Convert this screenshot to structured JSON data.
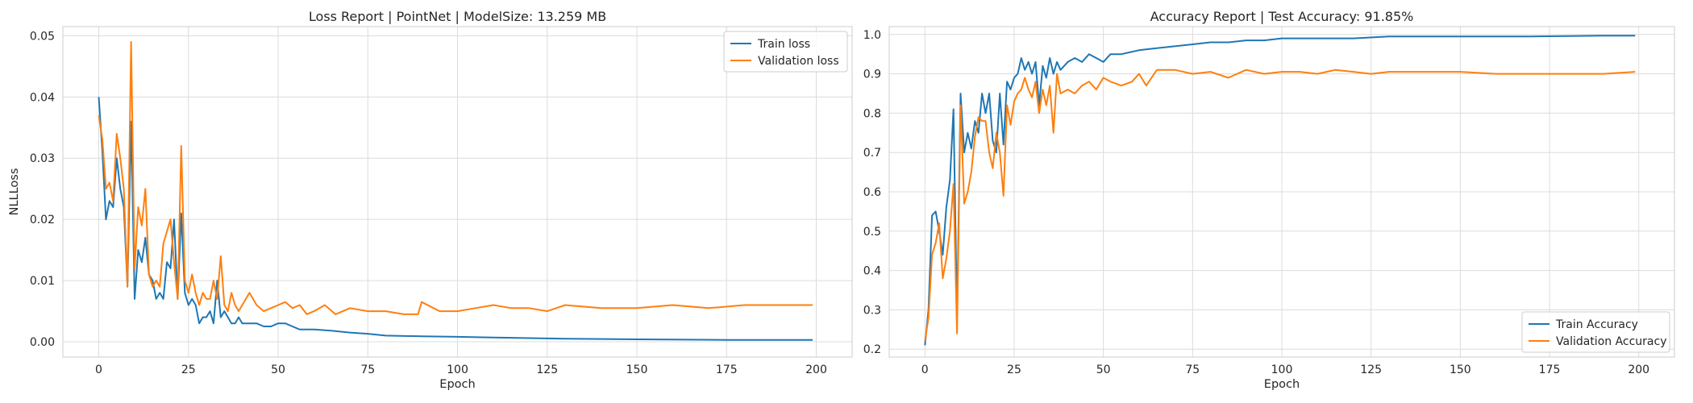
{
  "chart_data": [
    {
      "type": "line",
      "title": "Loss Report | PointNet | ModelSize: 13.259 MB",
      "xlabel": "Epoch",
      "ylabel": "NLLLoss",
      "xlim": [
        -10,
        210
      ],
      "ylim": [
        -0.0025,
        0.0515
      ],
      "xticks": [
        0,
        25,
        50,
        75,
        100,
        125,
        150,
        175,
        200
      ],
      "yticks": [
        0.0,
        0.01,
        0.02,
        0.03,
        0.04,
        0.05
      ],
      "ytick_labels": [
        "0.00",
        "0.01",
        "0.02",
        "0.03",
        "0.04",
        "0.05"
      ],
      "grid": true,
      "legend_position": "top-right",
      "series": [
        {
          "name": "Train loss",
          "color": "#1f77b4",
          "x": [
            0,
            1,
            2,
            3,
            4,
            5,
            6,
            7,
            8,
            9,
            10,
            11,
            12,
            13,
            14,
            15,
            16,
            17,
            18,
            19,
            20,
            21,
            22,
            23,
            24,
            25,
            26,
            27,
            28,
            29,
            30,
            31,
            32,
            33,
            34,
            35,
            36,
            37,
            38,
            39,
            40,
            42,
            44,
            46,
            48,
            50,
            52,
            54,
            56,
            58,
            60,
            65,
            70,
            75,
            80,
            90,
            100,
            110,
            120,
            130,
            150,
            175,
            199
          ],
          "y": [
            0.04,
            0.031,
            0.02,
            0.023,
            0.022,
            0.03,
            0.025,
            0.022,
            0.009,
            0.036,
            0.007,
            0.015,
            0.013,
            0.017,
            0.011,
            0.01,
            0.007,
            0.008,
            0.007,
            0.013,
            0.012,
            0.02,
            0.007,
            0.021,
            0.008,
            0.006,
            0.007,
            0.006,
            0.003,
            0.004,
            0.004,
            0.005,
            0.003,
            0.01,
            0.004,
            0.005,
            0.004,
            0.003,
            0.003,
            0.004,
            0.003,
            0.003,
            0.003,
            0.0025,
            0.0025,
            0.003,
            0.003,
            0.0025,
            0.002,
            0.002,
            0.002,
            0.0018,
            0.0015,
            0.0013,
            0.001,
            0.0009,
            0.0008,
            0.0007,
            0.0006,
            0.0005,
            0.0004,
            0.0003,
            0.0003
          ]
        },
        {
          "name": "Validation loss",
          "color": "#ff7f0e",
          "x": [
            0,
            1,
            2,
            3,
            4,
            5,
            6,
            7,
            8,
            9,
            10,
            11,
            12,
            13,
            14,
            15,
            16,
            17,
            18,
            19,
            20,
            21,
            22,
            23,
            24,
            25,
            26,
            27,
            28,
            29,
            30,
            31,
            32,
            33,
            34,
            35,
            36,
            37,
            38,
            39,
            40,
            42,
            44,
            46,
            48,
            50,
            52,
            54,
            56,
            58,
            60,
            63,
            66,
            70,
            75,
            80,
            85,
            89,
            90,
            95,
            100,
            105,
            110,
            115,
            120,
            125,
            130,
            140,
            150,
            160,
            170,
            180,
            190,
            199
          ],
          "y": [
            0.037,
            0.033,
            0.025,
            0.026,
            0.023,
            0.034,
            0.03,
            0.025,
            0.009,
            0.049,
            0.012,
            0.022,
            0.019,
            0.025,
            0.011,
            0.009,
            0.01,
            0.009,
            0.016,
            0.018,
            0.02,
            0.013,
            0.007,
            0.032,
            0.01,
            0.008,
            0.011,
            0.008,
            0.006,
            0.008,
            0.007,
            0.007,
            0.01,
            0.007,
            0.014,
            0.006,
            0.005,
            0.008,
            0.006,
            0.005,
            0.006,
            0.008,
            0.006,
            0.005,
            0.0055,
            0.006,
            0.0065,
            0.0055,
            0.006,
            0.0045,
            0.005,
            0.006,
            0.0045,
            0.0055,
            0.005,
            0.005,
            0.0045,
            0.0045,
            0.0065,
            0.005,
            0.005,
            0.0055,
            0.006,
            0.0055,
            0.0055,
            0.005,
            0.006,
            0.0055,
            0.0055,
            0.006,
            0.0055,
            0.006,
            0.006,
            0.006
          ]
        }
      ]
    },
    {
      "type": "line",
      "title": "Accuracy Report | Test Accuracy: 91.85%",
      "xlabel": "Epoch",
      "ylabel": "",
      "xlim": [
        -10,
        210
      ],
      "ylim": [
        0.18,
        1.02
      ],
      "xticks": [
        0,
        25,
        50,
        75,
        100,
        125,
        150,
        175,
        200
      ],
      "yticks": [
        0.2,
        0.3,
        0.4,
        0.5,
        0.6,
        0.7,
        0.8,
        0.9,
        1.0
      ],
      "ytick_labels": [
        "0.2",
        "0.3",
        "0.4",
        "0.5",
        "0.6",
        "0.7",
        "0.8",
        "0.9",
        "1.0"
      ],
      "grid": true,
      "legend_position": "bottom-right",
      "series": [
        {
          "name": "Train Accuracy",
          "color": "#1f77b4",
          "x": [
            0,
            1,
            2,
            3,
            4,
            5,
            6,
            7,
            8,
            9,
            10,
            11,
            12,
            13,
            14,
            15,
            16,
            17,
            18,
            19,
            20,
            21,
            22,
            23,
            24,
            25,
            26,
            27,
            28,
            29,
            30,
            31,
            32,
            33,
            34,
            35,
            36,
            37,
            38,
            40,
            42,
            44,
            46,
            48,
            50,
            52,
            55,
            60,
            65,
            70,
            75,
            80,
            85,
            90,
            95,
            100,
            110,
            120,
            130,
            140,
            150,
            160,
            170,
            180,
            190,
            199
          ],
          "y": [
            0.21,
            0.3,
            0.54,
            0.55,
            0.5,
            0.44,
            0.56,
            0.63,
            0.81,
            0.28,
            0.85,
            0.7,
            0.75,
            0.71,
            0.78,
            0.75,
            0.85,
            0.8,
            0.85,
            0.73,
            0.7,
            0.85,
            0.72,
            0.88,
            0.86,
            0.89,
            0.9,
            0.94,
            0.91,
            0.93,
            0.9,
            0.93,
            0.82,
            0.92,
            0.89,
            0.94,
            0.9,
            0.93,
            0.91,
            0.93,
            0.94,
            0.93,
            0.95,
            0.94,
            0.93,
            0.95,
            0.95,
            0.96,
            0.965,
            0.97,
            0.975,
            0.98,
            0.98,
            0.985,
            0.985,
            0.99,
            0.99,
            0.99,
            0.995,
            0.995,
            0.995,
            0.995,
            0.995,
            0.996,
            0.997,
            0.997
          ]
        },
        {
          "name": "Validation Accuracy",
          "color": "#ff7f0e",
          "x": [
            0,
            1,
            2,
            3,
            4,
            5,
            6,
            7,
            8,
            9,
            10,
            11,
            12,
            13,
            14,
            15,
            16,
            17,
            18,
            19,
            20,
            21,
            22,
            23,
            24,
            25,
            26,
            27,
            28,
            29,
            30,
            31,
            32,
            33,
            34,
            35,
            36,
            37,
            38,
            40,
            42,
            44,
            46,
            48,
            50,
            52,
            55,
            58,
            60,
            62,
            65,
            70,
            75,
            80,
            85,
            90,
            95,
            100,
            105,
            110,
            115,
            120,
            125,
            130,
            140,
            150,
            160,
            170,
            180,
            190,
            199
          ],
          "y": [
            0.22,
            0.28,
            0.44,
            0.47,
            0.52,
            0.38,
            0.43,
            0.5,
            0.62,
            0.24,
            0.82,
            0.57,
            0.6,
            0.65,
            0.74,
            0.79,
            0.78,
            0.78,
            0.7,
            0.66,
            0.75,
            0.7,
            0.59,
            0.82,
            0.77,
            0.83,
            0.85,
            0.86,
            0.89,
            0.86,
            0.84,
            0.88,
            0.8,
            0.86,
            0.82,
            0.87,
            0.75,
            0.9,
            0.85,
            0.86,
            0.85,
            0.87,
            0.88,
            0.86,
            0.89,
            0.88,
            0.87,
            0.88,
            0.9,
            0.87,
            0.91,
            0.91,
            0.9,
            0.905,
            0.89,
            0.91,
            0.9,
            0.905,
            0.905,
            0.9,
            0.91,
            0.905,
            0.9,
            0.905,
            0.905,
            0.905,
            0.9,
            0.9,
            0.9,
            0.9,
            0.905
          ]
        }
      ]
    }
  ]
}
